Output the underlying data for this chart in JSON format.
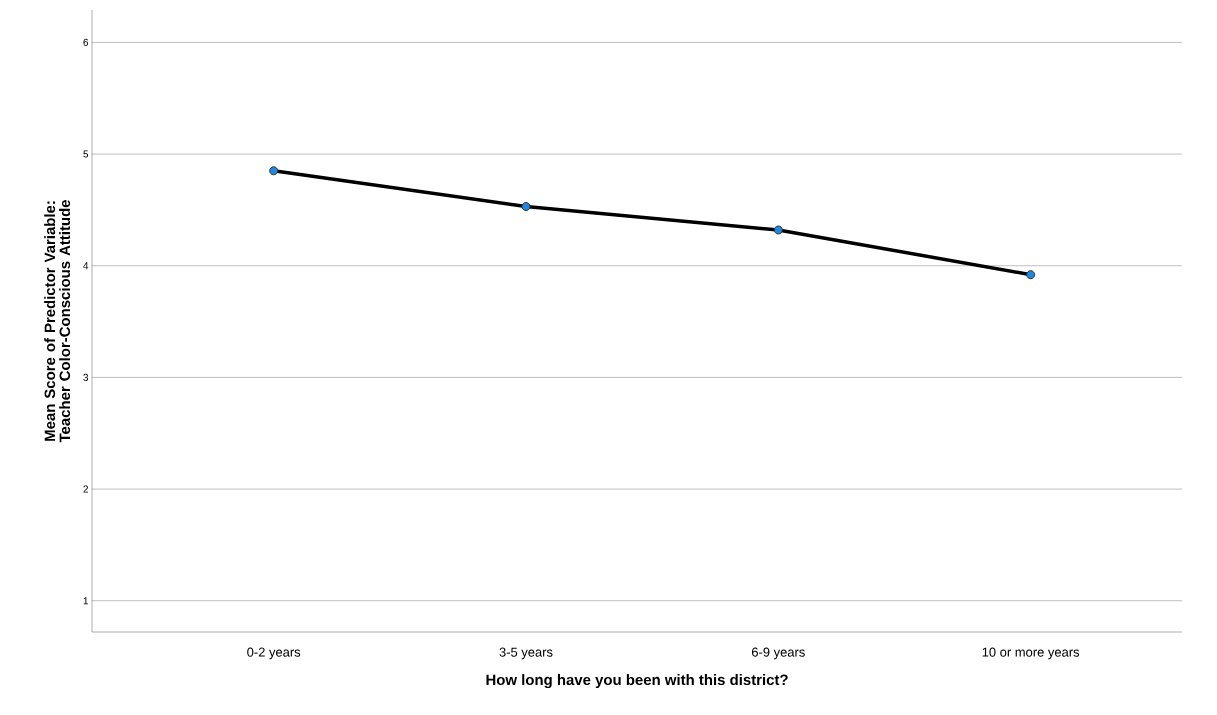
{
  "chart_data": {
    "type": "line",
    "xlabel": "How long have you been with this district?",
    "ylabel": "Mean Score of Predictor Variable: Teacher Color-Conscious Attitude",
    "categories": [
      "0-2 years",
      "3-5 years",
      "6-9 years",
      "10 or more years"
    ],
    "series": [
      {
        "color": "#000000",
        "colors": [
          "#1e88e5",
          "#1e88e5",
          "#1e88e5",
          "#1e88e5"
        ],
        "values": [
          4.85,
          4.53,
          4.32,
          3.92
        ]
      }
    ],
    "ylim": [
      0.72,
      6.29
    ],
    "yticks": [
      1,
      2,
      3,
      4,
      5,
      6
    ],
    "grid": "y",
    "marker": "circle",
    "line_style": "solid"
  }
}
